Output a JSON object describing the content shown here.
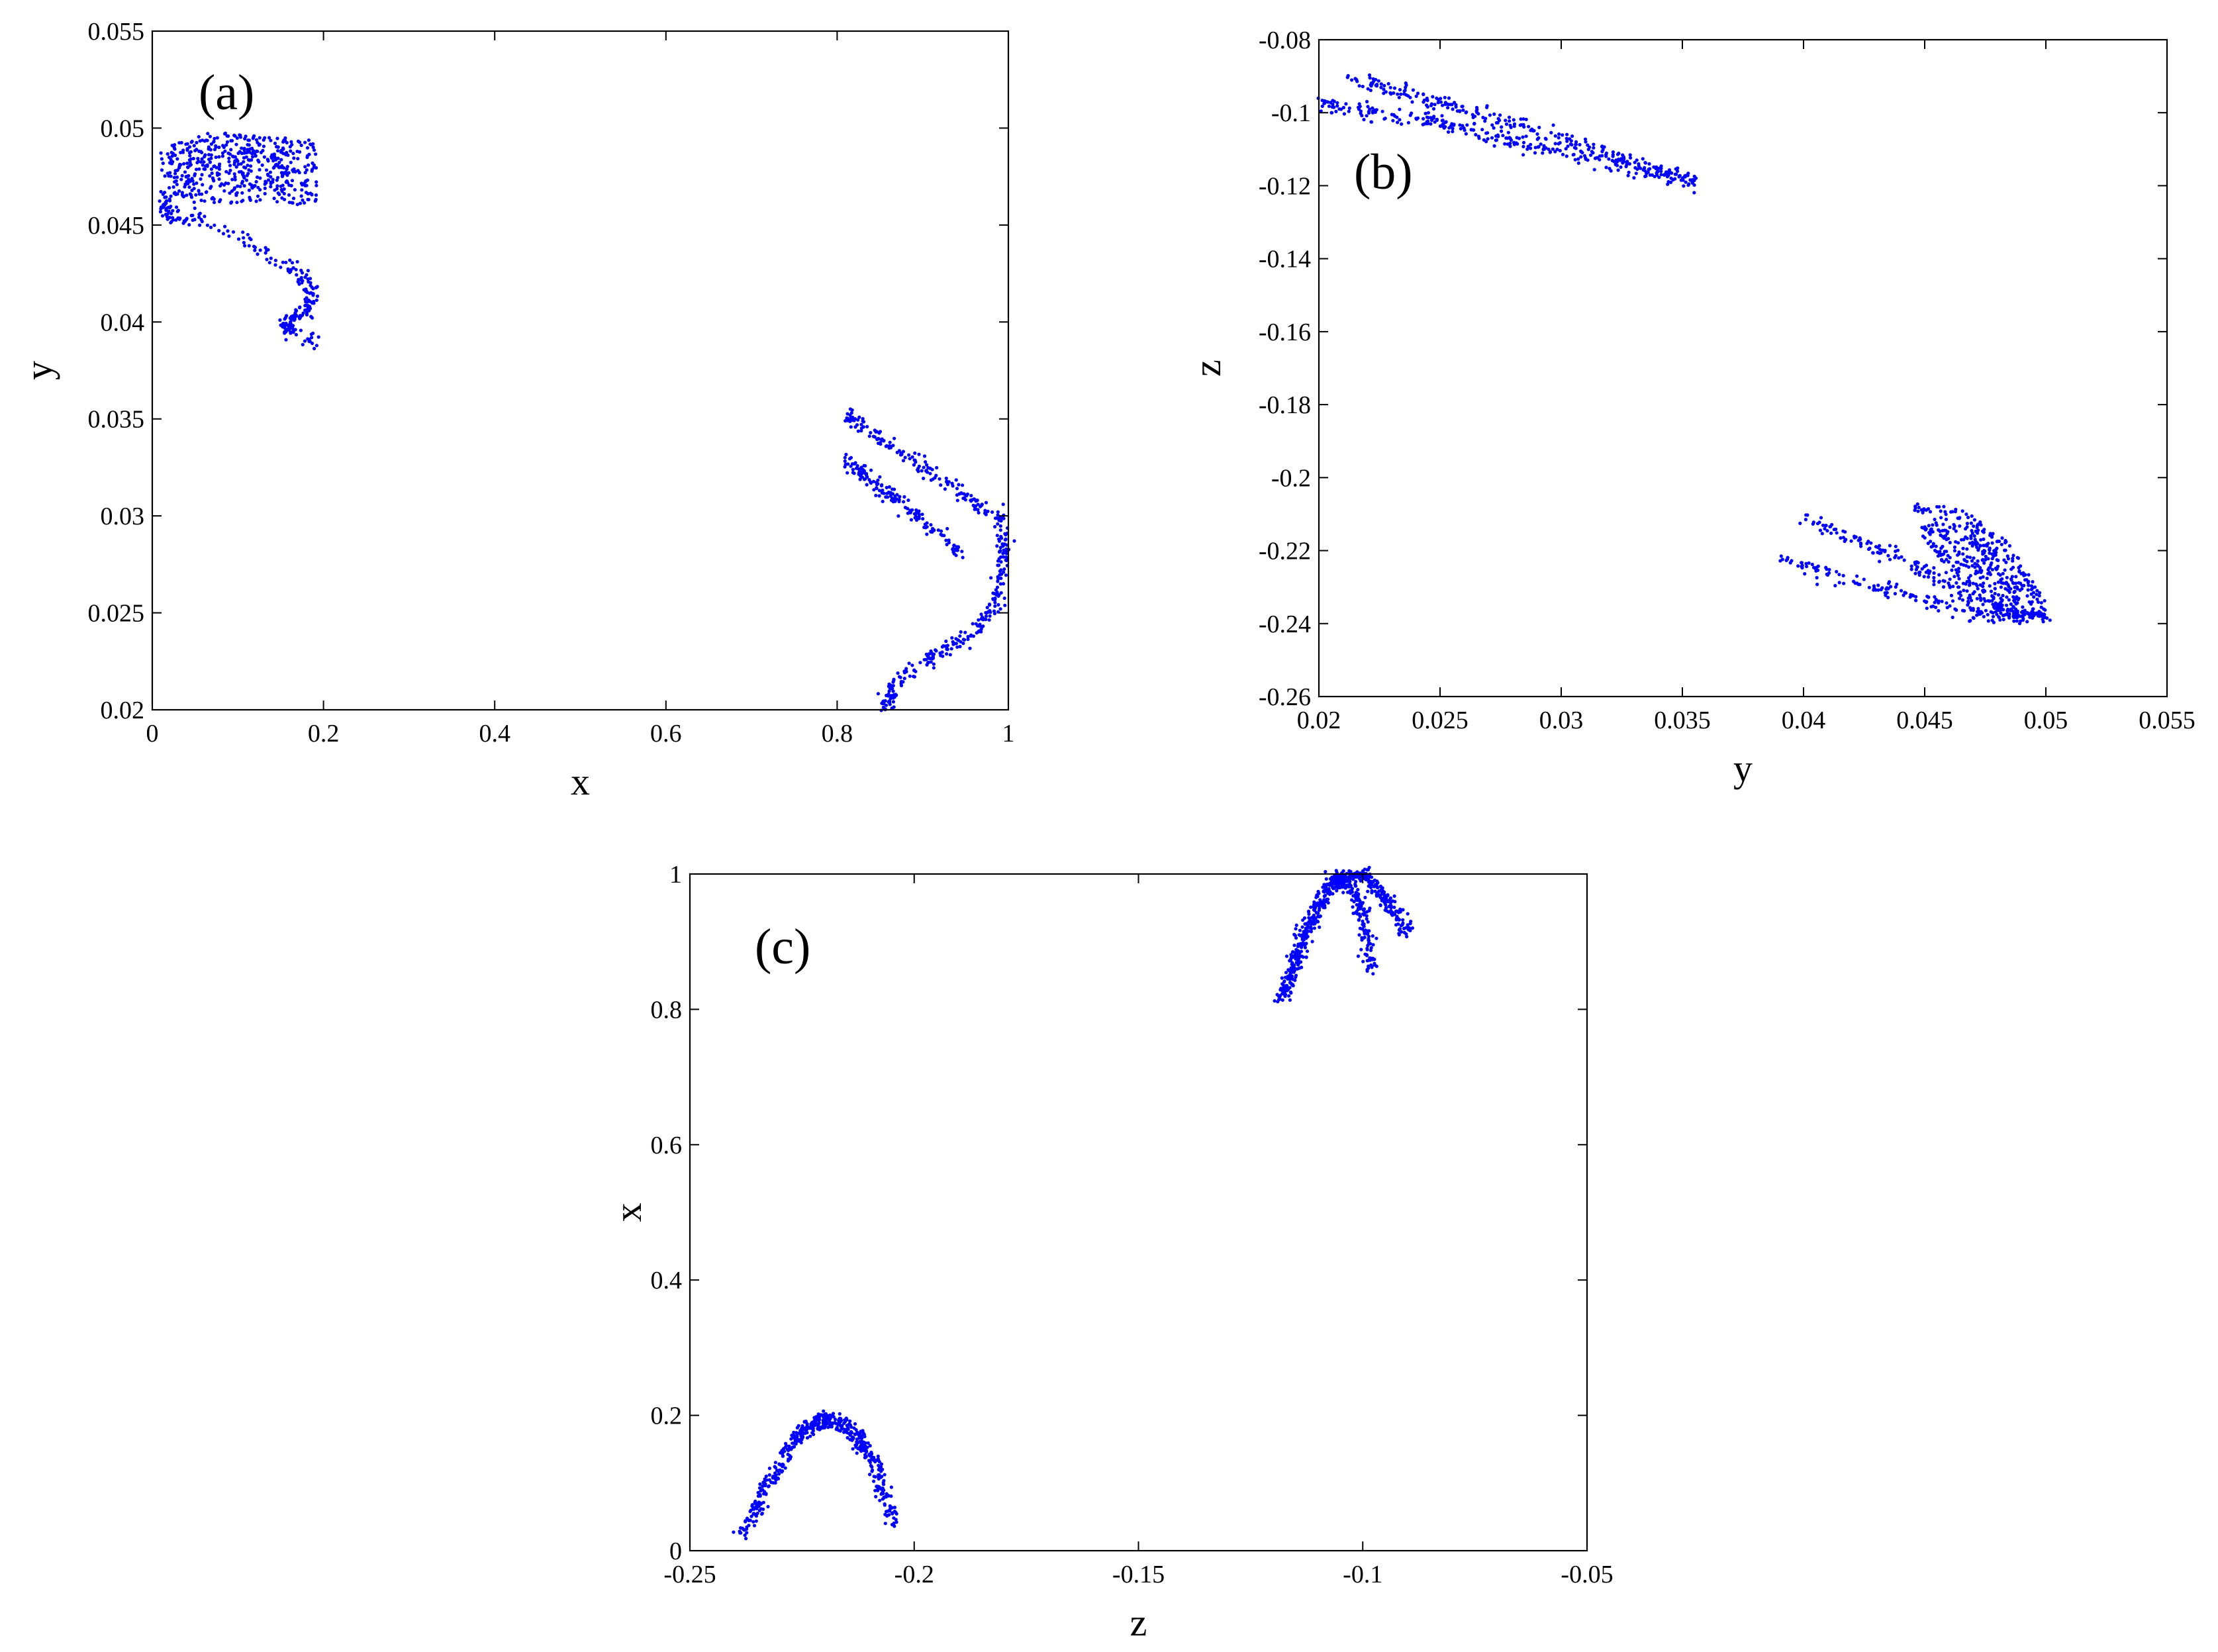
{
  "figure": {
    "marker_color": "#0000FF",
    "axis_color": "#000000"
  },
  "chart_data": [
    {
      "id": "a",
      "type": "scatter",
      "panel_label": "(a)",
      "xlabel": "x",
      "ylabel": "y",
      "xlim": [
        0,
        1
      ],
      "ylim": [
        0.02,
        0.055
      ],
      "xticks": [
        "0",
        "0.2",
        "0.4",
        "0.6",
        "0.8",
        "1"
      ],
      "yticks": [
        "0.02",
        "0.025",
        "0.03",
        "0.035",
        "0.04",
        "0.045",
        "0.05",
        "0.055"
      ],
      "grid": false,
      "clusters": [
        {
          "name": "upper-left band",
          "outline": [
            [
              0.01,
              0.049
            ],
            [
              0.07,
              0.0498
            ],
            [
              0.13,
              0.0496
            ],
            [
              0.19,
              0.0494
            ],
            [
              0.195,
              0.047
            ],
            [
              0.19,
              0.046
            ],
            [
              0.12,
              0.0462
            ],
            [
              0.05,
              0.046
            ],
            [
              0.01,
              0.047
            ]
          ],
          "count": 520
        },
        {
          "name": "upper-left hook",
          "path": [
            [
              0.015,
              0.0465
            ],
            [
              0.02,
              0.0455
            ],
            [
              0.06,
              0.0452
            ],
            [
              0.12,
              0.044
            ],
            [
              0.17,
              0.0425
            ],
            [
              0.19,
              0.0415
            ],
            [
              0.175,
              0.0405
            ],
            [
              0.16,
              0.04
            ],
            [
              0.155,
              0.0397
            ],
            [
              0.19,
              0.0389
            ]
          ],
          "count": 260
        },
        {
          "name": "right arc",
          "path": [
            [
              0.81,
              0.0352
            ],
            [
              0.85,
              0.034
            ],
            [
              0.9,
              0.0325
            ],
            [
              0.95,
              0.031
            ],
            [
              0.99,
              0.03
            ],
            [
              0.995,
              0.028
            ],
            [
              0.985,
              0.0255
            ],
            [
              0.96,
              0.024
            ],
            [
              0.92,
              0.023
            ],
            [
              0.87,
              0.0215
            ],
            [
              0.855,
              0.02
            ]
          ],
          "count": 420
        },
        {
          "name": "right inner strands",
          "path": [
            [
              0.81,
              0.033
            ],
            [
              0.85,
              0.0315
            ],
            [
              0.9,
              0.0298
            ],
            [
              0.945,
              0.028
            ]
          ],
          "count": 160
        }
      ]
    },
    {
      "id": "b",
      "type": "scatter",
      "panel_label": "(b)",
      "xlabel": "y",
      "ylabel": "z",
      "xlim": [
        0.02,
        0.055
      ],
      "ylim": [
        -0.26,
        -0.08
      ],
      "xticks": [
        "0.02",
        "0.025",
        "0.03",
        "0.035",
        "0.04",
        "0.045",
        "0.05",
        "0.055"
      ],
      "yticks": [
        "-0.26",
        "-0.24",
        "-0.22",
        "-0.2",
        "-0.18",
        "-0.16",
        "-0.14",
        "-0.12",
        "-0.1",
        "-0.08"
      ],
      "grid": false,
      "clusters": [
        {
          "name": "upper strand 1",
          "path": [
            [
              0.0213,
              -0.0905
            ],
            [
              0.026,
              -0.099
            ],
            [
              0.031,
              -0.109
            ],
            [
              0.0355,
              -0.119
            ]
          ],
          "count": 260
        },
        {
          "name": "upper strand 2",
          "path": [
            [
              0.02,
              -0.097
            ],
            [
              0.025,
              -0.103
            ],
            [
              0.03,
              -0.111
            ],
            [
              0.0355,
              -0.119
            ]
          ],
          "count": 260
        },
        {
          "name": "lower strand 1",
          "path": [
            [
              0.039,
              -0.2225
            ],
            [
              0.043,
              -0.23
            ],
            [
              0.047,
              -0.237
            ],
            [
              0.05,
              -0.2385
            ]
          ],
          "count": 180
        },
        {
          "name": "lower strand 2",
          "path": [
            [
              0.04,
              -0.211
            ],
            [
              0.044,
              -0.222
            ],
            [
              0.047,
              -0.233
            ],
            [
              0.05,
              -0.2385
            ]
          ],
          "count": 180
        },
        {
          "name": "lower lobe",
          "outline": [
            [
              0.0445,
              -0.207
            ],
            [
              0.0465,
              -0.208
            ],
            [
              0.0485,
              -0.218
            ],
            [
              0.05,
              -0.234
            ],
            [
              0.05,
              -0.239
            ],
            [
              0.048,
              -0.237
            ],
            [
              0.046,
              -0.226
            ],
            [
              0.0448,
              -0.215
            ]
          ],
          "count": 420
        }
      ]
    },
    {
      "id": "c",
      "type": "scatter",
      "panel_label": "(c)",
      "xlabel": "z",
      "ylabel": "x",
      "xlim": [
        -0.25,
        -0.05
      ],
      "ylim": [
        0,
        1
      ],
      "xticks": [
        "-0.25",
        "-0.2",
        "-0.15",
        "-0.1",
        "-0.05"
      ],
      "yticks": [
        "0",
        "0.2",
        "0.4",
        "0.6",
        "0.8",
        "1"
      ],
      "grid": false,
      "clusters": [
        {
          "name": "lower parabola",
          "path": [
            [
              -0.2385,
              0.02
            ],
            [
              -0.232,
              0.105
            ],
            [
              -0.226,
              0.17
            ],
            [
              -0.22,
              0.196
            ],
            [
              -0.214,
              0.18
            ],
            [
              -0.209,
              0.13
            ],
            [
              -0.205,
              0.04
            ]
          ],
          "count": 520
        },
        {
          "name": "upper parabola 1",
          "path": [
            [
              -0.1185,
              0.81
            ],
            [
              -0.114,
              0.9
            ],
            [
              -0.108,
              0.985
            ],
            [
              -0.104,
              0.995
            ],
            [
              -0.1,
              0.945
            ],
            [
              -0.098,
              0.85
            ]
          ],
          "count": 380
        },
        {
          "name": "upper parabola 2",
          "path": [
            [
              -0.1175,
              0.815
            ],
            [
              -0.112,
              0.92
            ],
            [
              -0.106,
              0.99
            ],
            [
              -0.1,
              0.998
            ],
            [
              -0.095,
              0.965
            ],
            [
              -0.09,
              0.915
            ]
          ],
          "count": 380
        }
      ]
    }
  ]
}
